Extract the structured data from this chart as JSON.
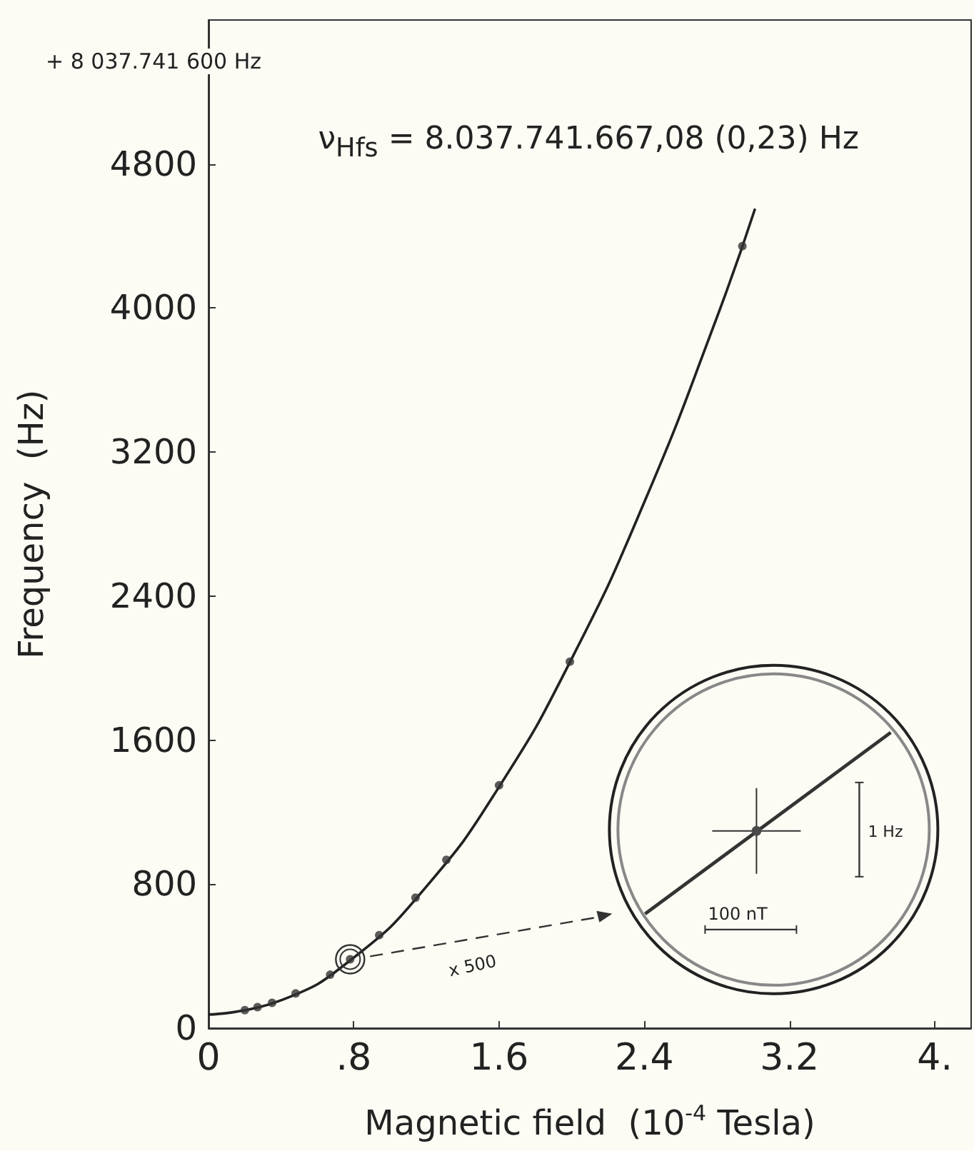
{
  "chart_data": {
    "type": "scatter",
    "xlabel": "Magnetic field  (10$^{-4}$ Tesla)",
    "ylabel": "Frequency  (Hz)",
    "annotations": [
      "+ 8 037.741 600 Hz",
      "ν$_{Hfs}$ = 8.037.741.667,08  (0,23)  Hz",
      "x 500",
      "1 Hz",
      "100 nT"
    ],
    "series": [
      {
        "type": "line",
        "color": "#222222",
        "line_style": "solid",
        "x": [
          0,
          0.4,
          0.8,
          1.2,
          1.6,
          2.0,
          2.4,
          2.8,
          3.01
        ],
        "values": [
          76,
          155,
          392,
          787,
          1340,
          2052,
          2922,
          3949,
          4552
        ]
      },
      {
        "color": "#333333",
        "marker": "circle",
        "x": [
          0.2,
          0.27,
          0.35,
          0.48,
          0.67,
          0.78,
          0.94,
          1.14,
          1.31,
          1.6,
          1.99,
          2.94
        ],
        "values": [
          100,
          117,
          141,
          193,
          297,
          383,
          517,
          725,
          935,
          1349,
          2036,
          4344
        ]
      }
    ],
    "xlim": [
      0,
      4.2
    ],
    "xticks": [
      0,
      {
        "value": 0.8,
        "label": ".8"
      },
      1.6,
      2.4,
      3.2,
      {
        "value": 4,
        "label": "4."
      }
    ],
    "ylim": [
      0,
      5600
    ],
    "yticks": [
      0,
      800,
      1600,
      2400,
      3200,
      4000,
      4800
    ],
    "grid": false
  }
}
